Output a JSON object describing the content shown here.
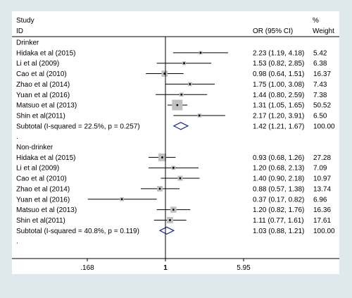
{
  "chart_data": {
    "type": "forest",
    "header": {
      "col1_line1": "Study",
      "col1_line2": "ID",
      "ci_header": "OR (95% CI)",
      "weight_line1": "%",
      "weight_line2": "Weight"
    },
    "x_ticks": [
      ".168",
      "1",
      "5.95"
    ],
    "x_tick_values": [
      0.168,
      1,
      5.95
    ],
    "reference_line": 1,
    "groups": [
      {
        "name": "Drinker",
        "studies": [
          {
            "label": "Hidaka et al (2015)",
            "or": 2.23,
            "lo": 1.19,
            "hi": 4.18,
            "ci_text": "2.23 (1.19, 4.18)",
            "weight": 5.42,
            "weight_text": "5.42"
          },
          {
            "label": "Li et al (2009)",
            "or": 1.53,
            "lo": 0.82,
            "hi": 2.85,
            "ci_text": "1.53 (0.82, 2.85)",
            "weight": 6.38,
            "weight_text": "6.38"
          },
          {
            "label": "Cao et al (2010)",
            "or": 0.98,
            "lo": 0.64,
            "hi": 1.51,
            "ci_text": "0.98 (0.64, 1.51)",
            "weight": 16.37,
            "weight_text": "16.37"
          },
          {
            "label": "Zhao et al (2014)",
            "or": 1.75,
            "lo": 1.0,
            "hi": 3.08,
            "ci_text": "1.75 (1.00, 3.08)",
            "weight": 7.43,
            "weight_text": "7.43"
          },
          {
            "label": "Yuan et al (2016)",
            "or": 1.44,
            "lo": 0.8,
            "hi": 2.59,
            "ci_text": "1.44 (0.80, 2.59)",
            "weight": 7.38,
            "weight_text": "7.38"
          },
          {
            "label": "Matsuo et al (2013)",
            "or": 1.31,
            "lo": 1.05,
            "hi": 1.65,
            "ci_text": "1.31 (1.05, 1.65)",
            "weight": 50.52,
            "weight_text": "50.52"
          },
          {
            "label": "Shin et al(2011)",
            "or": 2.17,
            "lo": 1.2,
            "hi": 3.91,
            "ci_text": "2.17 (1.20, 3.91)",
            "weight": 6.5,
            "weight_text": "6.50"
          }
        ],
        "subtotal": {
          "label": "Subtotal  (I-squared = 22.5%, p = 0.257)",
          "or": 1.42,
          "lo": 1.21,
          "hi": 1.67,
          "ci_text": "1.42 (1.21, 1.67)",
          "weight_text": "100.00"
        }
      },
      {
        "name": "Non-drinker",
        "studies": [
          {
            "label": "Hidaka et al (2015)",
            "or": 0.93,
            "lo": 0.68,
            "hi": 1.26,
            "ci_text": "0.93 (0.68, 1.26)",
            "weight": 27.28,
            "weight_text": "27.28"
          },
          {
            "label": "Li et al (2009)",
            "or": 1.2,
            "lo": 0.68,
            "hi": 2.13,
            "ci_text": "1.20 (0.68, 2.13)",
            "weight": 7.09,
            "weight_text": "7.09"
          },
          {
            "label": "Cao et al (2010)",
            "or": 1.4,
            "lo": 0.9,
            "hi": 2.18,
            "ci_text": "1.40 (0.90, 2.18)",
            "weight": 10.97,
            "weight_text": "10.97"
          },
          {
            "label": "Zhao et al (2014)",
            "or": 0.88,
            "lo": 0.57,
            "hi": 1.38,
            "ci_text": "0.88 (0.57, 1.38)",
            "weight": 13.74,
            "weight_text": "13.74"
          },
          {
            "label": "Yuan et al (2016)",
            "or": 0.37,
            "lo": 0.17,
            "hi": 0.82,
            "ci_text": "0.37 (0.17, 0.82)",
            "weight": 6.96,
            "weight_text": "6.96"
          },
          {
            "label": "Matsuo et al (2013)",
            "or": 1.2,
            "lo": 0.82,
            "hi": 1.76,
            "ci_text": "1.20 (0.82, 1.76)",
            "weight": 16.36,
            "weight_text": "16.36"
          },
          {
            "label": "Shin et al(2011)",
            "or": 1.11,
            "lo": 0.77,
            "hi": 1.61,
            "ci_text": "1.11 (0.77, 1.61)",
            "weight": 17.61,
            "weight_text": "17.61"
          }
        ],
        "subtotal": {
          "label": "Subtotal  (I-squared = 40.8%, p = 0.119)",
          "or": 1.03,
          "lo": 0.88,
          "hi": 1.21,
          "ci_text": "1.03 (0.88, 1.21)",
          "weight_text": "100.00"
        }
      }
    ],
    "spacer_text": ".",
    "colors": {
      "background": "#dfe8ec",
      "plot": "#ffffff",
      "box": "#c0c0c0",
      "line": "#000000",
      "diamond": "#1f2a8a"
    }
  }
}
